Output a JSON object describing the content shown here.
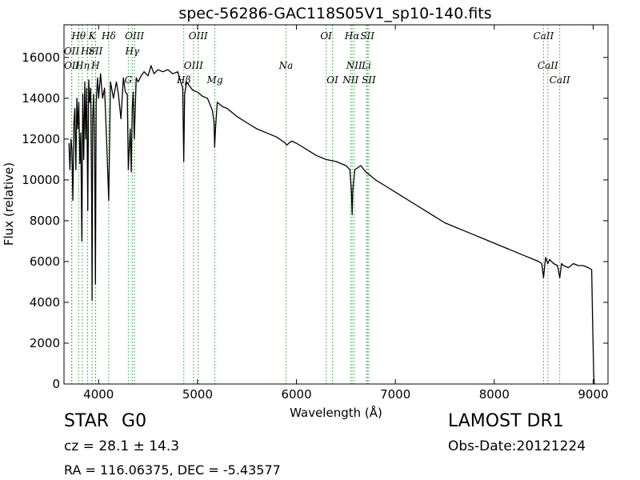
{
  "chart_data": {
    "type": "line",
    "title": "spec-56286-GAC118S05V1_sp10-140.fits",
    "xlabel": "Wavelength (Å)",
    "ylabel": "Flux (relative)",
    "xlim": [
      3650,
      9150
    ],
    "ylim": [
      0,
      17600
    ],
    "xticks": [
      4000,
      5000,
      6000,
      7000,
      8000,
      9000
    ],
    "yticks": [
      0,
      2000,
      4000,
      6000,
      8000,
      10000,
      12000,
      14000,
      16000
    ],
    "grid": false,
    "line_color": "#000000",
    "marker_color": "#2ca02c",
    "series": [
      {
        "x": [
          3700,
          3710,
          3720,
          3730,
          3740,
          3750,
          3760,
          3770,
          3780,
          3790,
          3800,
          3810,
          3820,
          3830,
          3840,
          3850,
          3860,
          3870,
          3880,
          3890,
          3900,
          3910,
          3920,
          3930,
          3934,
          3940,
          3950,
          3960,
          3968,
          3975,
          3990,
          4000,
          4020,
          4040,
          4060,
          4080,
          4102,
          4120,
          4150,
          4180,
          4200,
          4226,
          4250,
          4270,
          4290,
          4300,
          4310,
          4320,
          4330,
          4340,
          4350,
          4360,
          4380,
          4400,
          4430,
          4460,
          4500,
          4530,
          4560,
          4600,
          4650,
          4700,
          4750,
          4800,
          4830,
          4850,
          4861,
          4870,
          4890,
          4920,
          4950,
          5000,
          5050,
          5100,
          5150,
          5167,
          5173,
          5183,
          5200,
          5250,
          5300,
          5400,
          5500,
          5600,
          5700,
          5800,
          5890,
          5900,
          5950,
          6000,
          6100,
          6200,
          6300,
          6400,
          6500,
          6540,
          6555,
          6563,
          6570,
          6590,
          6650,
          6700,
          6750,
          6800,
          6900,
          7000,
          7100,
          7200,
          7300,
          7400,
          7500,
          7600,
          7700,
          7800,
          7900,
          8000,
          8100,
          8200,
          8300,
          8400,
          8450,
          8480,
          8498,
          8510,
          8520,
          8542,
          8560,
          8580,
          8600,
          8640,
          8662,
          8680,
          8700,
          8750,
          8800,
          8850,
          8900,
          8950,
          8985,
          8995,
          9005,
          9012
        ],
        "y": [
          11800,
          10500,
          12000,
          11500,
          9000,
          12800,
          13500,
          10500,
          14000,
          12500,
          13800,
          10800,
          12300,
          7000,
          14200,
          11000,
          14800,
          12000,
          14500,
          8500,
          14900,
          13800,
          14500,
          9000,
          4100,
          13000,
          14200,
          11500,
          4900,
          13800,
          15000,
          14000,
          15200,
          14000,
          14500,
          12000,
          9000,
          14800,
          14000,
          14800,
          14200,
          13000,
          15000,
          14300,
          14200,
          10500,
          11500,
          12500,
          10400,
          13500,
          14300,
          12000,
          15000,
          14800,
          15100,
          15300,
          15100,
          15600,
          15200,
          15400,
          15300,
          15400,
          15200,
          15300,
          14800,
          14500,
          10900,
          14200,
          14800,
          14600,
          14400,
          14300,
          14100,
          14000,
          13400,
          12800,
          11600,
          12600,
          13800,
          13600,
          13500,
          13100,
          12800,
          12500,
          12300,
          12100,
          11800,
          11700,
          11900,
          11800,
          11500,
          11200,
          11000,
          10900,
          10700,
          10500,
          9500,
          8300,
          9500,
          10500,
          10700,
          10400,
          10200,
          10000,
          9700,
          9400,
          9100,
          8800,
          8500,
          8200,
          7900,
          7700,
          7500,
          7300,
          7100,
          6900,
          6700,
          6500,
          6300,
          6100,
          6000,
          5900,
          5200,
          5800,
          6200,
          5900,
          6100,
          6000,
          5900,
          5800,
          5200,
          5900,
          5800,
          5700,
          5900,
          5800,
          5800,
          5700,
          5600,
          3000,
          500,
          0
        ]
      }
    ],
    "lines": [
      {
        "name": "OII",
        "x": 3727,
        "row": 2
      },
      {
        "name": "OII",
        "x": 3729,
        "row": 3
      },
      {
        "name": "Hθ",
        "x": 3798,
        "row": 1
      },
      {
        "name": "Hη",
        "x": 3835,
        "row": 3
      },
      {
        "name": "Hε",
        "x": 3889,
        "row": 2
      },
      {
        "name": "K",
        "x": 3934,
        "row": 1
      },
      {
        "name": "SII",
        "x": 3970,
        "row": 2
      },
      {
        "name": "H",
        "x": 3968,
        "row": 3
      },
      {
        "name": "Hδ",
        "x": 4102,
        "row": 1
      },
      {
        "name": "G",
        "x": 4300,
        "row": 4
      },
      {
        "name": "Hγ",
        "x": 4340,
        "row": 2
      },
      {
        "name": "OIII",
        "x": 4363,
        "row": 1
      },
      {
        "name": "Hβ",
        "x": 4861,
        "row": 4
      },
      {
        "name": "OIII",
        "x": 4959,
        "row": 3
      },
      {
        "name": "OIII",
        "x": 5007,
        "row": 1
      },
      {
        "name": "Mg",
        "x": 5175,
        "row": 4
      },
      {
        "name": "Na",
        "x": 5894,
        "row": 3
      },
      {
        "name": "OI",
        "x": 6300,
        "row": 1
      },
      {
        "name": "OI",
        "x": 6364,
        "row": 4
      },
      {
        "name": "NII",
        "x": 6548,
        "row": 4
      },
      {
        "name": "Hα",
        "x": 6563,
        "row": 1
      },
      {
        "name": "NII",
        "x": 6584,
        "row": 3
      },
      {
        "name": "SII",
        "x": 6717,
        "row": 1
      },
      {
        "name": "Li",
        "x": 6708,
        "row": 3
      },
      {
        "name": "SII",
        "x": 6731,
        "row": 4
      },
      {
        "name": "CaII",
        "x": 8498,
        "row": 1
      },
      {
        "name": "CaII",
        "x": 8542,
        "row": 3
      },
      {
        "name": "CaII",
        "x": 8662,
        "row": 4
      }
    ]
  },
  "info": {
    "object_class": "STAR",
    "subclass": "G0",
    "survey": "LAMOST DR1",
    "redshift": "cz = 28.1 ± 14.3",
    "obs_date": "Obs-Date:20121224",
    "coords": "RA = 116.06375, DEC = -5.43577"
  }
}
